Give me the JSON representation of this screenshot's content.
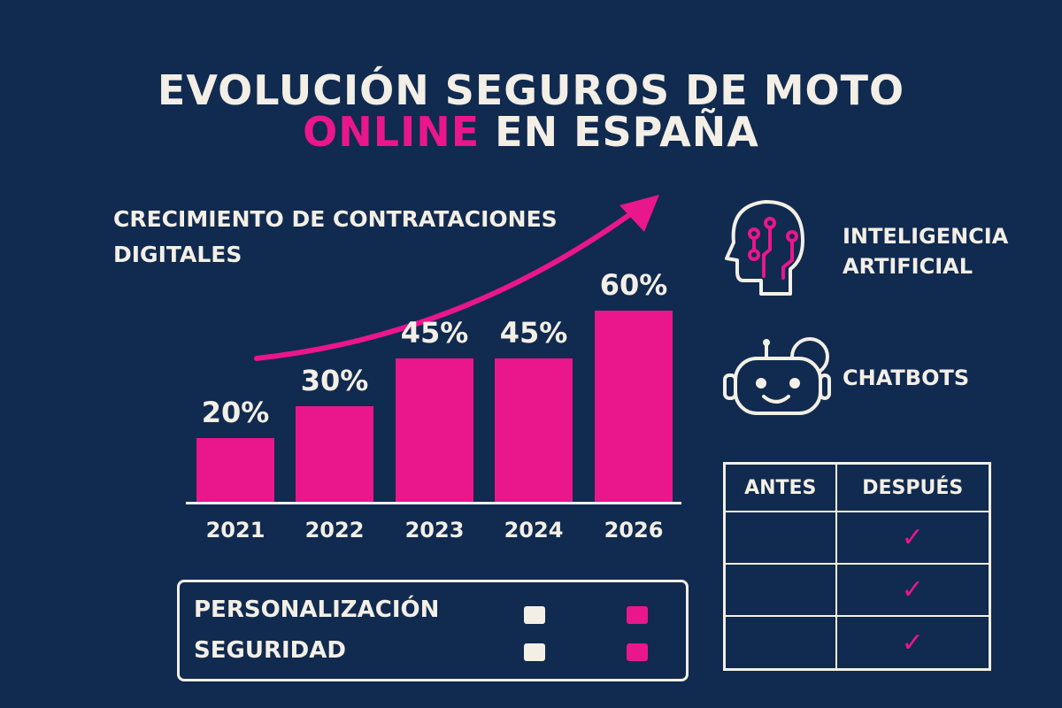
{
  "title": {
    "line1": "EVOLUCIÓN SEGUROS DE MOTO",
    "highlight": "ONLINE",
    "line2_rest": "EN ESPAÑA"
  },
  "colors": {
    "background": "#112a4f",
    "accent": "#e9168c",
    "text": "#f3efe6"
  },
  "chart_data": {
    "type": "bar",
    "title": "CRECIMIENTO DE CONTRATACIONES DIGITALES",
    "categories": [
      "2021",
      "2022",
      "2023",
      "2024",
      "2026"
    ],
    "values": [
      20,
      30,
      45,
      45,
      60
    ],
    "data_labels": [
      "20%",
      "30%",
      "45%",
      "45%",
      "60%"
    ],
    "unit": "%",
    "trend_arrow": "up",
    "grid": false
  },
  "features": [
    {
      "icon": "brain-circuit-icon",
      "label_line1": "INTELIGENCIA",
      "label_line2": "ARTIFICIAL"
    },
    {
      "icon": "robot-icon",
      "label_line1": "CHATBOTS",
      "label_line2": ""
    }
  ],
  "legend": {
    "rows": [
      {
        "label": "PERSONALIZACIÓN"
      },
      {
        "label": "SEGURIDAD"
      }
    ]
  },
  "comparison": {
    "headers": [
      "ANTES",
      "DESPUÉS"
    ],
    "rows": [
      {
        "antes": "",
        "despues": "✓"
      },
      {
        "antes": "",
        "despues": "✓"
      },
      {
        "antes": "",
        "despues": "✓"
      }
    ]
  }
}
